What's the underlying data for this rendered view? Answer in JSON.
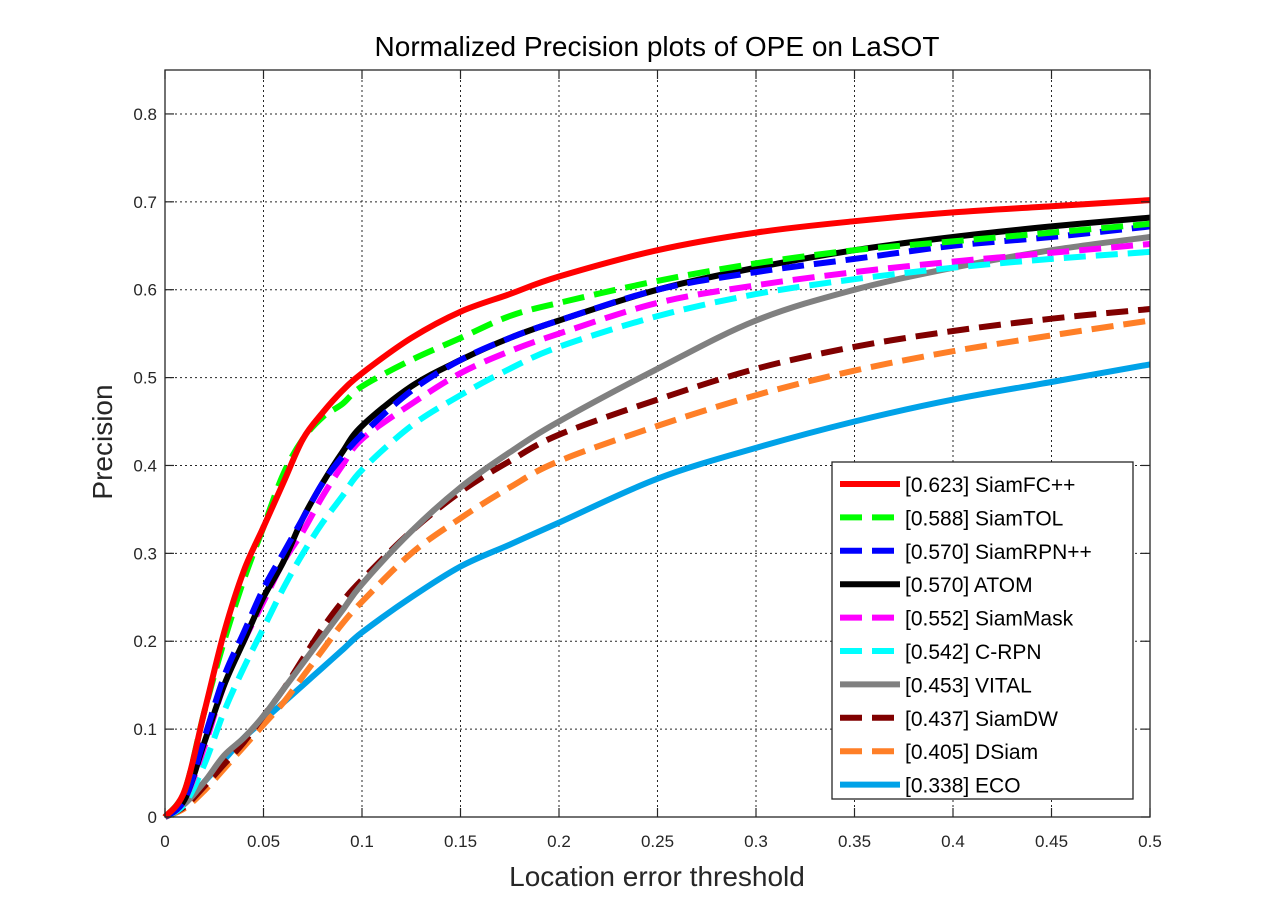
{
  "chart_data": {
    "type": "line",
    "title": "Normalized Precision plots of OPE on LaSOT",
    "xlabel": "Location error threshold",
    "ylabel": "Precision",
    "xlim": [
      0,
      0.5
    ],
    "ylim": [
      0,
      0.85
    ],
    "grid": true,
    "legend_position": "bottom-right",
    "x_ticks": [
      "0",
      "0.05",
      "0.1",
      "0.15",
      "0.2",
      "0.25",
      "0.3",
      "0.35",
      "0.4",
      "0.45",
      "0.5"
    ],
    "y_ticks": [
      "0",
      "0.1",
      "0.2",
      "0.3",
      "0.4",
      "0.5",
      "0.6",
      "0.7",
      "0.8"
    ],
    "x": [
      0,
      0.01,
      0.02,
      0.03,
      0.04,
      0.05,
      0.06,
      0.07,
      0.08,
      0.09,
      0.1,
      0.125,
      0.15,
      0.175,
      0.2,
      0.25,
      0.3,
      0.35,
      0.4,
      0.45,
      0.5
    ],
    "series": [
      {
        "name": "SiamFC++",
        "score": "0.623",
        "label": "[0.623] SiamFC++",
        "color": "#ff0000",
        "dash": "solid",
        "values": [
          0,
          0.03,
          0.12,
          0.21,
          0.28,
          0.33,
          0.38,
          0.43,
          0.46,
          0.485,
          0.505,
          0.545,
          0.575,
          0.595,
          0.615,
          0.645,
          0.665,
          0.678,
          0.688,
          0.695,
          0.702
        ]
      },
      {
        "name": "SiamTOL",
        "score": "0.588",
        "label": "[0.588] SiamTOL",
        "color": "#00ff00",
        "dash": "dashed",
        "values": [
          0,
          0.03,
          0.12,
          0.2,
          0.27,
          0.33,
          0.39,
          0.43,
          0.455,
          0.47,
          0.49,
          0.52,
          0.545,
          0.57,
          0.585,
          0.61,
          0.63,
          0.645,
          0.655,
          0.665,
          0.675
        ]
      },
      {
        "name": "SiamRPN++",
        "score": "0.570",
        "label": "[0.570] SiamRPN++",
        "color": "#0000ff",
        "dash": "dashed",
        "values": [
          0,
          0.02,
          0.09,
          0.16,
          0.21,
          0.26,
          0.3,
          0.34,
          0.38,
          0.41,
          0.435,
          0.485,
          0.52,
          0.545,
          0.565,
          0.6,
          0.62,
          0.635,
          0.65,
          0.66,
          0.672
        ]
      },
      {
        "name": "ATOM",
        "score": "0.570",
        "label": "[0.570] ATOM",
        "color": "#000000",
        "dash": "solid",
        "values": [
          0,
          0.02,
          0.085,
          0.15,
          0.2,
          0.25,
          0.29,
          0.34,
          0.38,
          0.415,
          0.445,
          0.49,
          0.52,
          0.545,
          0.565,
          0.6,
          0.625,
          0.645,
          0.66,
          0.672,
          0.682
        ]
      },
      {
        "name": "SiamMask",
        "score": "0.552",
        "label": "[0.552] SiamMask",
        "color": "#ff00ff",
        "dash": "dashed",
        "values": [
          0,
          0.02,
          0.08,
          0.15,
          0.2,
          0.245,
          0.29,
          0.325,
          0.365,
          0.4,
          0.43,
          0.47,
          0.505,
          0.53,
          0.55,
          0.585,
          0.605,
          0.62,
          0.632,
          0.642,
          0.652
        ]
      },
      {
        "name": "C-RPN",
        "score": "0.542",
        "label": "[0.542] C-RPN",
        "color": "#00ffff",
        "dash": "dashed",
        "values": [
          0,
          0.015,
          0.06,
          0.12,
          0.17,
          0.215,
          0.26,
          0.3,
          0.335,
          0.365,
          0.395,
          0.445,
          0.48,
          0.51,
          0.535,
          0.57,
          0.595,
          0.612,
          0.625,
          0.635,
          0.643
        ]
      },
      {
        "name": "VITAL",
        "score": "0.453",
        "label": "[0.453] VITAL",
        "color": "#808080",
        "dash": "solid",
        "values": [
          0,
          0.015,
          0.04,
          0.07,
          0.09,
          0.115,
          0.145,
          0.175,
          0.205,
          0.235,
          0.265,
          0.325,
          0.375,
          0.415,
          0.45,
          0.51,
          0.565,
          0.6,
          0.625,
          0.645,
          0.66
        ]
      },
      {
        "name": "SiamDW",
        "score": "0.437",
        "label": "[0.437] SiamDW",
        "color": "#800000",
        "dash": "dashed",
        "values": [
          0,
          0.012,
          0.035,
          0.06,
          0.085,
          0.115,
          0.145,
          0.18,
          0.215,
          0.245,
          0.27,
          0.325,
          0.37,
          0.405,
          0.435,
          0.475,
          0.51,
          0.535,
          0.553,
          0.567,
          0.578
        ]
      },
      {
        "name": "DSiam",
        "score": "0.405",
        "label": "[0.405] DSiam",
        "color": "#ff7f27",
        "dash": "dashed",
        "values": [
          0,
          0.01,
          0.03,
          0.055,
          0.08,
          0.105,
          0.13,
          0.16,
          0.19,
          0.22,
          0.245,
          0.3,
          0.34,
          0.375,
          0.405,
          0.445,
          0.48,
          0.508,
          0.53,
          0.548,
          0.565
        ]
      },
      {
        "name": "ECO",
        "score": "0.338",
        "label": "[0.338] ECO",
        "color": "#00a2e8",
        "dash": "solid",
        "values": [
          0,
          0.015,
          0.04,
          0.065,
          0.09,
          0.11,
          0.13,
          0.15,
          0.17,
          0.19,
          0.21,
          0.25,
          0.285,
          0.31,
          0.335,
          0.385,
          0.42,
          0.45,
          0.475,
          0.495,
          0.515
        ]
      }
    ]
  }
}
